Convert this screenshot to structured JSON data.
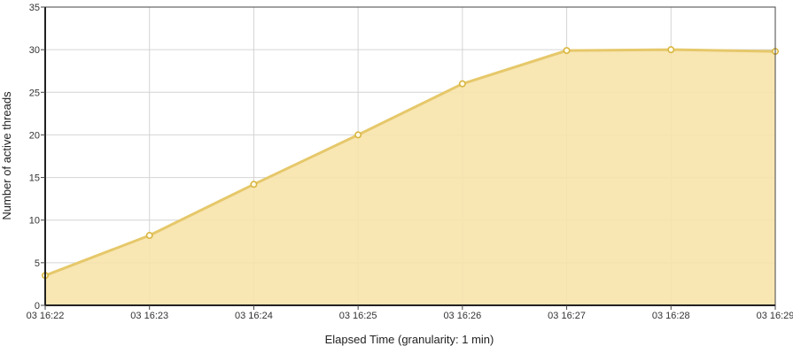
{
  "chart_data": {
    "type": "area",
    "title": "",
    "xlabel": "Elapsed Time (granularity: 1 min)",
    "ylabel": "Number of active threads",
    "categories": [
      "03 16:22",
      "03 16:23",
      "03 16:24",
      "03 16:25",
      "03 16:26",
      "03 16:27",
      "03 16:28",
      "03 16:29"
    ],
    "series": [
      {
        "name": "",
        "values": [
          3.5,
          8.2,
          14.2,
          20.0,
          26.0,
          29.9,
          30.0,
          29.8
        ]
      }
    ],
    "ylim": [
      0,
      35
    ],
    "yticks": [
      "0",
      "5",
      "10",
      "15",
      "20",
      "25",
      "30",
      "35"
    ],
    "grid": true,
    "legend": "none",
    "colors": {
      "line": "#e6c86a",
      "fill": "#f7e3ab",
      "point": "#d9b640",
      "grid": "#d4d4d4",
      "axis": "#444444"
    }
  }
}
